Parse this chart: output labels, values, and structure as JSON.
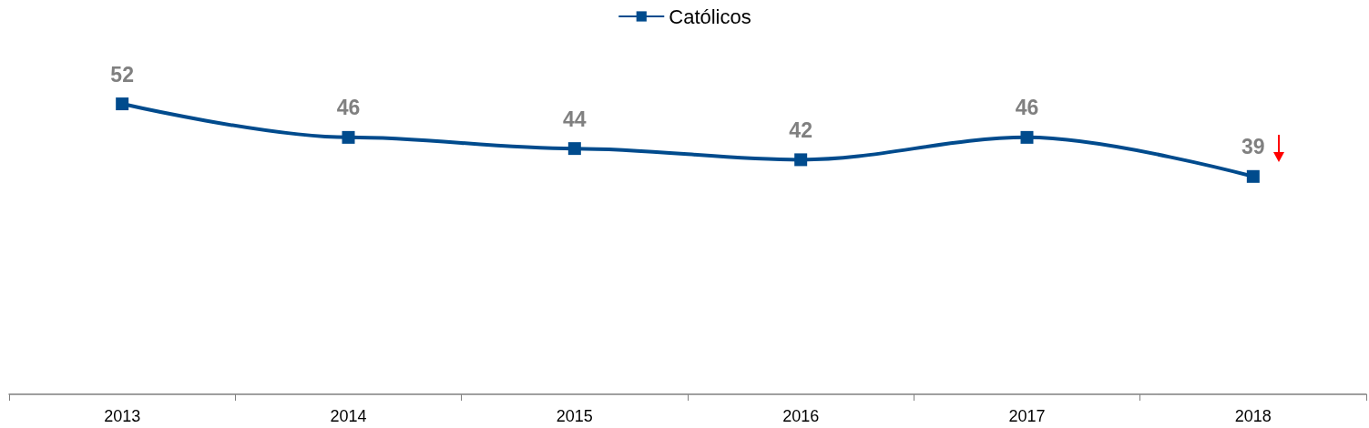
{
  "chart_data": {
    "type": "line",
    "categories": [
      "2013",
      "2014",
      "2015",
      "2016",
      "2017",
      "2018"
    ],
    "series": [
      {
        "name": "Católicos",
        "color": "#004b8d",
        "values": [
          52,
          46,
          44,
          42,
          46,
          39
        ]
      }
    ],
    "data_labels": true,
    "marker": "square",
    "legend": "top",
    "grid": false,
    "tick_labels": "x"
  }
}
